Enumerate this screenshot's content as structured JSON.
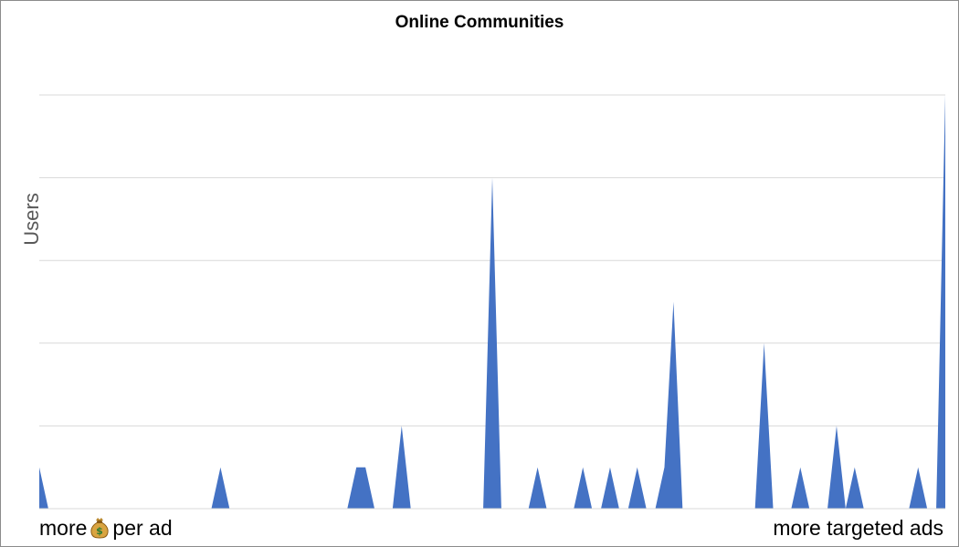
{
  "chart_data": {
    "type": "area",
    "title": "Online Communities",
    "ylabel": "Users",
    "xlabel_left": "more",
    "xlabel_left_suffix": "per ad",
    "xlabel_right": "more targeted ads",
    "grid": true,
    "ylim": [
      0,
      10
    ],
    "x": [
      0,
      1,
      2,
      3,
      4,
      5,
      6,
      7,
      8,
      9,
      10,
      11,
      12,
      13,
      14,
      15,
      16,
      17,
      18,
      19,
      20,
      21,
      22,
      23,
      24,
      25,
      26,
      27,
      28,
      29,
      30,
      31,
      32,
      33,
      34,
      35,
      36,
      37,
      38,
      39,
      40,
      41,
      42,
      43,
      44,
      45,
      46,
      47,
      48,
      49,
      50,
      51,
      52,
      53,
      54,
      55,
      56,
      57,
      58,
      59,
      60,
      61,
      62,
      63,
      64,
      65,
      66,
      67,
      68,
      69,
      70,
      71,
      72,
      73,
      74,
      75,
      76,
      77,
      78,
      79,
      80,
      81,
      82,
      83,
      84,
      85,
      86,
      87,
      88,
      89,
      90,
      91,
      92,
      93,
      94,
      95,
      96,
      97,
      98,
      99,
      100
    ],
    "values": [
      1,
      0,
      0,
      0,
      0,
      0,
      0,
      0,
      0,
      0,
      0,
      0,
      0,
      0,
      0,
      0,
      0,
      0,
      0,
      0,
      1,
      0,
      0,
      0,
      0,
      0,
      0,
      0,
      0,
      0,
      0,
      0,
      0,
      0,
      0,
      1,
      1,
      0,
      0,
      0,
      2,
      0,
      0,
      0,
      0,
      0,
      0,
      0,
      0,
      0,
      8,
      0,
      0,
      0,
      0,
      1,
      0,
      0,
      0,
      0,
      1,
      0,
      0,
      1,
      0,
      0,
      1,
      0,
      0,
      1,
      5,
      0,
      0,
      0,
      0,
      0,
      0,
      0,
      0,
      0,
      4,
      0,
      0,
      0,
      1,
      0,
      0,
      0,
      2,
      0,
      1,
      0,
      0,
      0,
      0,
      0,
      0,
      1,
      0,
      0,
      10
    ],
    "colors": {
      "series": "#4472c4",
      "grid": "#d9d9d9"
    }
  },
  "icons": {
    "money": "money-bag-icon"
  }
}
